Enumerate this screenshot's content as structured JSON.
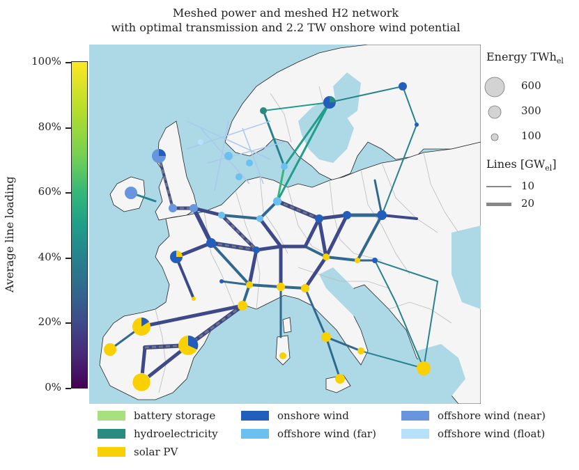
{
  "title": {
    "line1": "Meshed power and meshed H2 network",
    "line2": "with optimal transmission and 2.2 TW onshore wind potential"
  },
  "colorbar": {
    "label": "Average line loading",
    "ticks": [
      "100%",
      "80%",
      "60%",
      "40%",
      "20%",
      "0%"
    ],
    "colors": [
      "#440154",
      "#3e4989",
      "#26828e",
      "#35b779",
      "#fde725"
    ]
  },
  "size_legend": {
    "title": "Energy TWh",
    "subscript": "el",
    "values": [
      "600",
      "300",
      "100"
    ]
  },
  "line_legend": {
    "title": "Lines [GW",
    "subscript": "el",
    "title_end": "]",
    "values": [
      "10",
      "20"
    ]
  },
  "tech_legend": [
    {
      "label": "battery storage",
      "color": "#a8e07f"
    },
    {
      "label": "hydroelectricity",
      "color": "#2a8b7f"
    },
    {
      "label": "solar PV",
      "color": "#f9d002"
    },
    {
      "label": "onshore wind",
      "color": "#235ebc"
    },
    {
      "label": "offshore wind (far)",
      "color": "#6bc0f0"
    },
    {
      "label": "offshore wind (near)",
      "color": "#6895dd"
    },
    {
      "label": "offshore wind (float)",
      "color": "#b5e2fa"
    }
  ],
  "map_colors": {
    "sea": "#add8e6",
    "land": "#f5f5f5",
    "border": "#bbbbbb",
    "h2_pipe": "#7f7f7f"
  }
}
